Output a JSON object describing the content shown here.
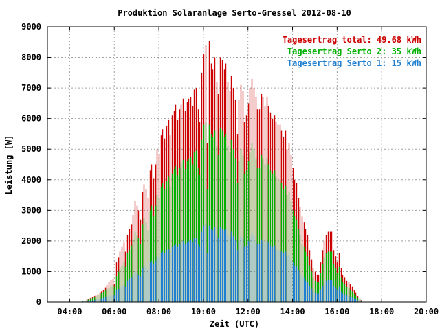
{
  "chart_data": {
    "type": "bar",
    "title": "Produktion Solaranlage Serto-Gressel 2012-08-10",
    "xlabel": "Zeit (UTC)",
    "ylabel": "Leistung [W]",
    "ylim": [
      0,
      9000
    ],
    "xlim": [
      "03:00",
      "20:00"
    ],
    "yticks": [
      "0",
      "1000",
      "2000",
      "3000",
      "4000",
      "5000",
      "6000",
      "7000",
      "8000",
      "9000"
    ],
    "xticks": [
      "04:00",
      "06:00",
      "08:00",
      "10:00",
      "12:00",
      "14:00",
      "16:00",
      "18:00",
      "20:00"
    ],
    "grid": true,
    "legend_position": "top-right",
    "colors": {
      "total": "#cc0000",
      "serto2": "#00b000",
      "serto1": "#1f7fd0"
    },
    "series_draw_order": [
      "total",
      "serto2",
      "serto1"
    ],
    "legend": [
      {
        "text": "Tagesertrag total: 49.68 kWh",
        "series": "total"
      },
      {
        "text": "Tagesertrag Serto 2: 35 kWh",
        "series": "serto2"
      },
      {
        "text": "Tagesertrag Serto 1: 15 kWh",
        "series": "serto1"
      }
    ],
    "x_times": [
      "04:35",
      "04:40",
      "04:45",
      "04:50",
      "04:55",
      "05:00",
      "05:05",
      "05:10",
      "05:15",
      "05:20",
      "05:25",
      "05:30",
      "05:35",
      "05:40",
      "05:45",
      "05:50",
      "05:55",
      "06:00",
      "06:05",
      "06:10",
      "06:15",
      "06:20",
      "06:25",
      "06:30",
      "06:35",
      "06:40",
      "06:45",
      "06:50",
      "06:55",
      "07:00",
      "07:05",
      "07:10",
      "07:15",
      "07:20",
      "07:25",
      "07:30",
      "07:35",
      "07:40",
      "07:45",
      "07:50",
      "07:55",
      "08:00",
      "08:05",
      "08:10",
      "08:15",
      "08:20",
      "08:25",
      "08:30",
      "08:35",
      "08:40",
      "08:45",
      "08:50",
      "08:55",
      "09:00",
      "09:05",
      "09:10",
      "09:15",
      "09:20",
      "09:25",
      "09:30",
      "09:35",
      "09:40",
      "09:45",
      "09:50",
      "09:55",
      "10:00",
      "10:05",
      "10:10",
      "10:15",
      "10:20",
      "10:25",
      "10:30",
      "10:35",
      "10:40",
      "10:45",
      "10:50",
      "10:55",
      "11:00",
      "11:05",
      "11:10",
      "11:15",
      "11:20",
      "11:25",
      "11:30",
      "11:35",
      "11:40",
      "11:45",
      "11:50",
      "11:55",
      "12:00",
      "12:05",
      "12:10",
      "12:15",
      "12:20",
      "12:25",
      "12:30",
      "12:35",
      "12:40",
      "12:45",
      "12:50",
      "12:55",
      "13:00",
      "13:05",
      "13:10",
      "13:15",
      "13:20",
      "13:25",
      "13:30",
      "13:35",
      "13:40",
      "13:45",
      "13:50",
      "13:55",
      "14:00",
      "14:05",
      "14:10",
      "14:15",
      "14:20",
      "14:25",
      "14:30",
      "14:35",
      "14:40",
      "14:45",
      "14:50",
      "14:55",
      "15:00",
      "15:05",
      "15:10",
      "15:15",
      "15:20",
      "15:25",
      "15:30",
      "15:35",
      "15:40",
      "15:45",
      "15:50",
      "15:55",
      "16:00",
      "16:05",
      "16:10",
      "16:15",
      "16:20",
      "16:25",
      "16:30",
      "16:35",
      "16:40",
      "16:45",
      "16:50",
      "16:55",
      "17:00",
      "17:05",
      "17:10",
      "17:15",
      "17:20",
      "17:25",
      "17:30",
      "17:35",
      "17:40",
      "17:45",
      "17:50",
      "17:55",
      "18:00",
      "18:05",
      "18:10",
      "18:15",
      "18:20"
    ],
    "series": [
      {
        "key": "total",
        "name": "Tagesertrag total",
        "values": [
          30,
          50,
          80,
          100,
          130,
          160,
          200,
          230,
          260,
          300,
          350,
          400,
          480,
          560,
          650,
          720,
          760,
          600,
          1300,
          1450,
          1650,
          1800,
          1950,
          1650,
          2200,
          2400,
          2550,
          2850,
          3300,
          3150,
          3000,
          2700,
          3600,
          3850,
          3700,
          3400,
          4300,
          4500,
          4050,
          4500,
          5000,
          4850,
          5450,
          5650,
          5350,
          5750,
          5950,
          5450,
          6100,
          6250,
          6450,
          5950,
          6300,
          6450,
          6650,
          6250,
          6550,
          6650,
          6700,
          6400,
          6950,
          7000,
          6300,
          5900,
          7500,
          8100,
          8400,
          5200,
          8550,
          7800,
          7600,
          8000,
          7200,
          6800,
          8000,
          7900,
          7600,
          7800,
          7200,
          6900,
          7400,
          7000,
          6600,
          5500,
          6600,
          7100,
          6900,
          5900,
          6100,
          6500,
          7000,
          7300,
          7000,
          6700,
          6300,
          6300,
          6800,
          6700,
          6400,
          6700,
          6400,
          6200,
          6000,
          6100,
          5900,
          5800,
          5800,
          5600,
          5400,
          5600,
          5000,
          5200,
          4800,
          4400,
          4000,
          3900,
          3400,
          3100,
          2800,
          2600,
          2400,
          2200,
          1700,
          1400,
          1100,
          1000,
          900,
          900,
          1300,
          1700,
          2000,
          2200,
          2300,
          2300,
          2300,
          1700,
          1500,
          1300,
          1600,
          1100,
          900,
          800,
          700,
          650,
          600,
          500,
          400,
          300,
          200,
          120,
          60
        ]
      },
      {
        "key": "serto2",
        "name": "Tagesertrag Serto 2",
        "values": [
          25,
          40,
          60,
          80,
          100,
          130,
          160,
          190,
          220,
          250,
          290,
          330,
          380,
          430,
          470,
          520,
          560,
          500,
          850,
          1000,
          1100,
          1200,
          1300,
          1150,
          1600,
          1700,
          1850,
          2050,
          2300,
          2200,
          2100,
          1900,
          2550,
          2750,
          2600,
          2350,
          3000,
          3150,
          2800,
          3150,
          3500,
          3400,
          3750,
          3900,
          3700,
          3950,
          4100,
          3750,
          4200,
          4350,
          4450,
          4150,
          4400,
          4550,
          4650,
          4350,
          4600,
          4700,
          4750,
          4500,
          4900,
          4950,
          4400,
          4150,
          5300,
          5800,
          5900,
          3700,
          5800,
          5500,
          5400,
          5600,
          5100,
          4800,
          5700,
          5600,
          5400,
          5500,
          5100,
          4900,
          5300,
          5000,
          4700,
          3900,
          4600,
          5000,
          4800,
          4200,
          4300,
          4600,
          4900,
          5200,
          5000,
          4700,
          4400,
          4400,
          4800,
          4700,
          4500,
          4700,
          4500,
          4300,
          4200,
          4300,
          4100,
          4000,
          4000,
          3900,
          3700,
          3800,
          3500,
          3600,
          3300,
          3000,
          2800,
          2700,
          2400,
          2200,
          1900,
          1800,
          1650,
          1500,
          1200,
          1000,
          800,
          700,
          650,
          650,
          950,
          1250,
          1450,
          1600,
          1650,
          1650,
          1650,
          1250,
          1100,
          950,
          1150,
          800,
          650,
          600,
          500,
          450,
          400,
          350,
          280,
          210,
          140,
          85,
          40
        ]
      },
      {
        "key": "serto1",
        "name": "Tagesertrag Serto 1",
        "values": [
          15,
          20,
          30,
          35,
          45,
          55,
          70,
          80,
          90,
          100,
          120,
          140,
          160,
          180,
          200,
          220,
          240,
          220,
          380,
          430,
          480,
          520,
          560,
          500,
          700,
          750,
          800,
          900,
          1000,
          950,
          900,
          850,
          1100,
          1200,
          1150,
          1050,
          1300,
          1350,
          1250,
          1350,
          1500,
          1450,
          1600,
          1650,
          1600,
          1700,
          1750,
          1600,
          1800,
          1850,
          1900,
          1800,
          1900,
          1950,
          2000,
          1900,
          1950,
          2000,
          2050,
          1950,
          2100,
          2100,
          1900,
          1800,
          2300,
          2500,
          2550,
          1600,
          2500,
          2400,
          2350,
          2450,
          2200,
          2100,
          2450,
          2400,
          2350,
          2400,
          2200,
          2100,
          2300,
          2150,
          2050,
          1700,
          2000,
          2150,
          2100,
          1800,
          1850,
          2000,
          2100,
          2250,
          2150,
          2000,
          1900,
          1900,
          2050,
          2000,
          1950,
          2000,
          1950,
          1850,
          1800,
          1850,
          1750,
          1700,
          1700,
          1650,
          1600,
          1650,
          1500,
          1550,
          1400,
          1300,
          1200,
          1150,
          1050,
          950,
          850,
          800,
          700,
          650,
          520,
          430,
          350,
          300,
          280,
          280,
          420,
          540,
          630,
          700,
          720,
          720,
          720,
          540,
          480,
          410,
          500,
          350,
          280,
          260,
          220,
          200,
          175,
          150,
          120,
          90,
          60,
          37,
          18
        ]
      }
    ]
  }
}
